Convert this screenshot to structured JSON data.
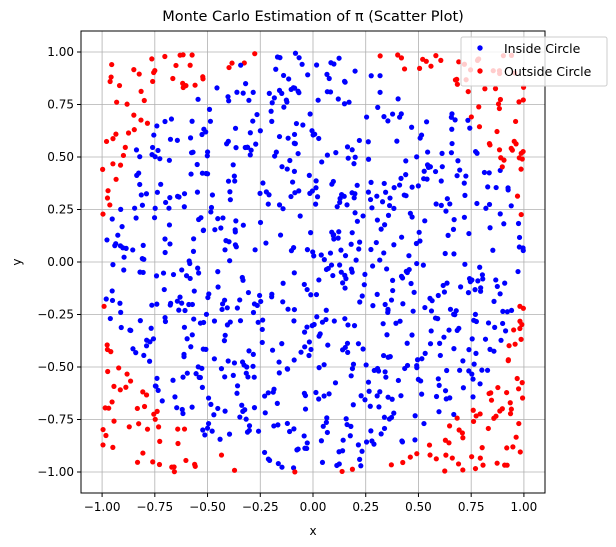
{
  "chart_data": {
    "type": "scatter",
    "title": "Monte Carlo Estimation of π (Scatter Plot)",
    "xlabel": "x",
    "ylabel": "y",
    "xlim": [
      -1.1,
      1.1
    ],
    "ylim": [
      -1.1,
      1.1
    ],
    "xticks": [
      -1.0,
      -0.75,
      -0.5,
      -0.25,
      0.0,
      0.25,
      0.5,
      0.75,
      1.0
    ],
    "yticks": [
      -1.0,
      -0.75,
      -0.5,
      -0.25,
      0.0,
      0.25,
      0.5,
      0.75,
      1.0
    ],
    "xtick_labels": [
      "−1.00",
      "−0.75",
      "−0.50",
      "−0.25",
      "0.00",
      "0.25",
      "0.50",
      "0.75",
      "1.00"
    ],
    "ytick_labels": [
      "−1.00",
      "−0.75",
      "−0.50",
      "−0.25",
      "0.00",
      "0.25",
      "0.50",
      "0.75",
      "1.00"
    ],
    "grid": true,
    "legend_position": "top-right",
    "n_points_approx": 1000,
    "series": [
      {
        "name": "Inside Circle",
        "color": "#0000ff",
        "rule": "x^2 + y^2 <= 1"
      },
      {
        "name": "Outside Circle",
        "color": "#ff0000",
        "rule": "x^2 + y^2 > 1"
      }
    ]
  }
}
